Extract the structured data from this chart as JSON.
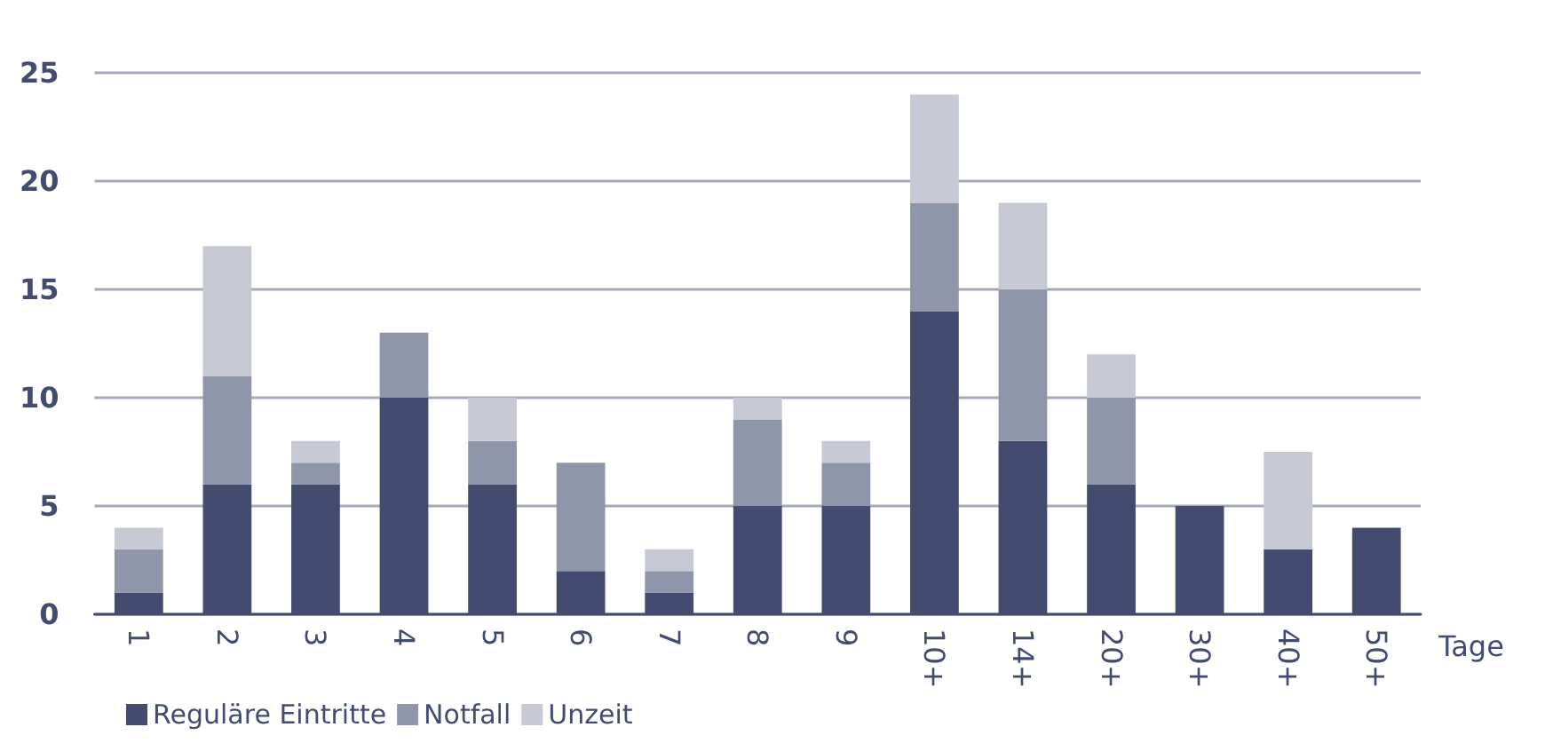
{
  "chart_data": {
    "type": "bar",
    "stacked": true,
    "xlabel": "Tage",
    "categories": [
      "1",
      "2",
      "3",
      "4",
      "5",
      "6",
      "7",
      "8",
      "9",
      "10+",
      "14+",
      "20+",
      "30+",
      "40+",
      "50+"
    ],
    "series": [
      {
        "name": "Reguläre Eintritte",
        "color": "#434c6e",
        "values": [
          1,
          6,
          6,
          10,
          6,
          2,
          1,
          5,
          5,
          14,
          8,
          6,
          5,
          3,
          4
        ]
      },
      {
        "name": "Notfall",
        "color": "#9096a9",
        "values": [
          2,
          5,
          1,
          3,
          2,
          5,
          1,
          4,
          2,
          5,
          7,
          4,
          0,
          0,
          0
        ]
      },
      {
        "name": "Unzeit",
        "color": "#c7c9d4",
        "values": [
          1,
          6,
          1,
          0,
          2,
          0,
          1,
          1,
          1,
          5,
          4,
          2,
          0,
          4.5,
          0
        ]
      }
    ],
    "ylim": [
      0,
      25
    ],
    "yticks": [
      0,
      5,
      10,
      15,
      20,
      25
    ],
    "grid": "y",
    "legend": "bottom left"
  }
}
